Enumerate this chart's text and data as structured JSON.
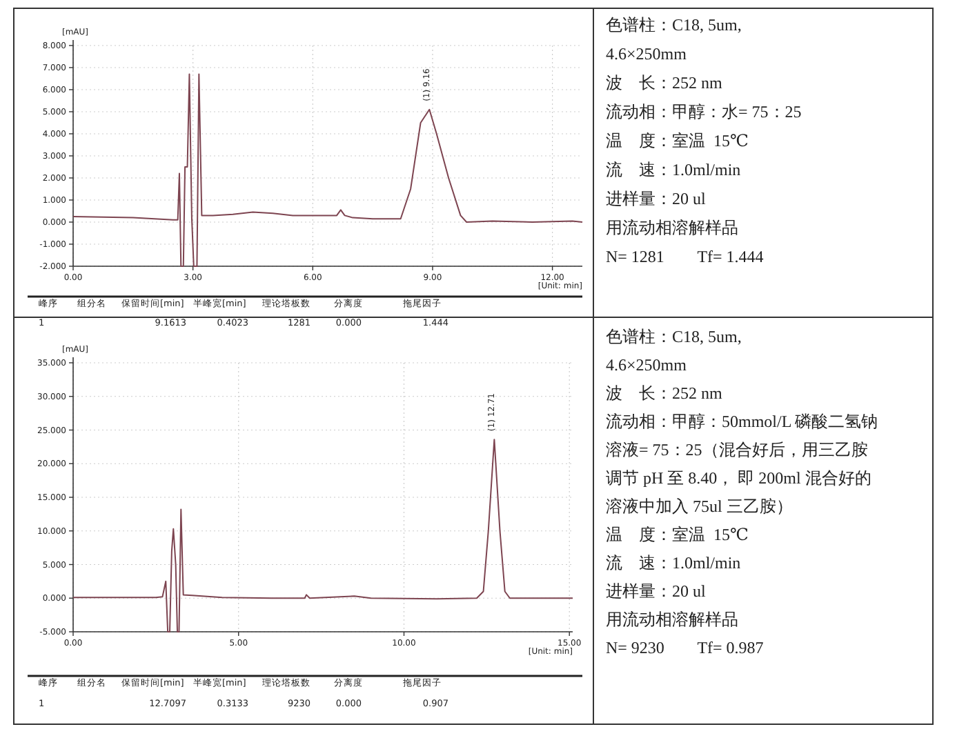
{
  "chart_data": [
    {
      "type": "line",
      "xlabel": "[Unit: min]",
      "ylabel": "[mAU]",
      "xlim": [
        0,
        12.75
      ],
      "ylim": [
        -2,
        8
      ],
      "xticks": [
        {
          "value": 0,
          "label": "0.00"
        },
        {
          "value": 3,
          "label": "3.00"
        },
        {
          "value": 6,
          "label": "6.00"
        },
        {
          "value": 9,
          "label": "9.00"
        },
        {
          "value": 12,
          "label": "12.00"
        }
      ],
      "yticks": [
        {
          "value": -2,
          "label": "-2.000"
        },
        {
          "value": -1,
          "label": "-1.000"
        },
        {
          "value": 0,
          "label": "0.000"
        },
        {
          "value": 1,
          "label": "1.000"
        },
        {
          "value": 2,
          "label": "2.000"
        },
        {
          "value": 3,
          "label": "3.000"
        },
        {
          "value": 4,
          "label": "4.000"
        },
        {
          "value": 5,
          "label": "5.000"
        },
        {
          "value": 6,
          "label": "6.000"
        },
        {
          "value": 7,
          "label": "7.000"
        },
        {
          "value": 8,
          "label": "8.000"
        }
      ],
      "grid": true,
      "x": [
        0,
        1.5,
        2.5,
        2.62,
        2.66,
        2.7,
        2.76,
        2.8,
        2.86,
        2.91,
        2.97,
        3.02,
        3.1,
        3.15,
        3.22,
        3.5,
        4.0,
        4.5,
        5.0,
        5.5,
        6.0,
        6.6,
        6.7,
        6.8,
        7.0,
        7.5,
        8.2,
        8.45,
        8.7,
        8.92,
        9.1,
        9.4,
        9.7,
        9.85,
        10.5,
        11.5,
        12.5,
        12.75
      ],
      "series": [
        {
          "color": "#7d4450",
          "values": [
            0.25,
            0.2,
            0.1,
            0.1,
            2.2,
            -2,
            -2,
            2.5,
            2.5,
            6.7,
            0.2,
            -2,
            -2,
            6.7,
            0.3,
            0.3,
            0.35,
            0.45,
            0.4,
            0.3,
            0.3,
            0.3,
            0.55,
            0.3,
            0.2,
            0.15,
            0.15,
            1.5,
            4.5,
            5.1,
            4.0,
            2.0,
            0.3,
            0.0,
            0.05,
            0.0,
            0.05,
            0.0
          ]
        }
      ],
      "annotations": [
        {
          "text": "(1) 9.16",
          "x": 8.92,
          "y": 5.1
        },
        "峰序",
        "组分名",
        "保留时间[min]",
        "半峰宽[min]",
        "理论塔板数",
        "分离度",
        "拖尾因子",
        "1",
        "9.1613",
        "0.4023",
        "1281",
        "0.000",
        "1.444"
      ]
    },
    {
      "type": "other",
      "annotations": [
        "色谱柱：C18, 5um,",
        "4.6×250mm",
        "波　长：252 nm",
        "流动相：甲醇：水= 75：25",
        "温　度：室温  15℃",
        "流　速：1.0ml/min",
        "进样量：20 ul",
        "用流动相溶解样品",
        "N= 1281        Tf= 1.444"
      ]
    },
    {
      "type": "line",
      "xlabel": "[Unit: min]",
      "ylabel": "[mAU]",
      "xlim": [
        0,
        15.1
      ],
      "ylim": [
        -5,
        35
      ],
      "xticks": [
        {
          "value": 0,
          "label": "0.00"
        },
        {
          "value": 5,
          "label": "5.00"
        },
        {
          "value": 10,
          "label": "10.00"
        },
        {
          "value": 15,
          "label": "15.00"
        }
      ],
      "yticks": [
        {
          "value": -5,
          "label": "-5.000"
        },
        {
          "value": 0,
          "label": "0.000"
        },
        {
          "value": 5,
          "label": "5.000"
        },
        {
          "value": 10,
          "label": "10.000"
        },
        {
          "value": 15,
          "label": "15.000"
        },
        {
          "value": 20,
          "label": "20.000"
        },
        {
          "value": 25,
          "label": "25.000"
        },
        {
          "value": 30,
          "label": "30.000"
        },
        {
          "value": 35,
          "label": "35.000"
        }
      ],
      "grid": true,
      "x": [
        0,
        2.5,
        2.7,
        2.8,
        2.86,
        2.92,
        2.98,
        3.03,
        3.1,
        3.15,
        3.2,
        3.26,
        3.33,
        3.6,
        4.5,
        6,
        7,
        7.05,
        7.15,
        8.5,
        9,
        11,
        12.2,
        12.4,
        12.55,
        12.73,
        12.9,
        13.05,
        13.2,
        14,
        15.1
      ],
      "series": [
        {
          "color": "#7d4450",
          "values": [
            0.1,
            0.1,
            0.2,
            2.5,
            -5,
            -5,
            7,
            10.3,
            5,
            -5,
            -5,
            13.2,
            0.5,
            0.4,
            0.1,
            0,
            0,
            0.5,
            0,
            0.3,
            0,
            -0.1,
            0,
            1,
            10,
            23.6,
            10,
            1,
            0,
            0,
            0
          ]
        }
      ],
      "annotations": [
        {
          "text": "(1) 12.71",
          "x": 12.73,
          "y": 23.6
        },
        "峰序",
        "组分名",
        "保留时间[min]",
        "半峰宽[min]",
        "理论塔板数",
        "分离度",
        "拖尾因子",
        "1",
        "12.7097",
        "0.3133",
        "9230",
        "0.000",
        "0.907"
      ]
    },
    {
      "type": "other",
      "annotations": [
        "色谱柱：C18, 5um,",
        "4.6×250mm",
        "波　长：252 nm",
        "流动相：甲醇：50mmol/L 磷酸二氢钠",
        "溶液= 75：25（混合好后，用三乙胺",
        "调节 pH 至 8.40， 即 200ml 混合好的",
        "溶液中加入 75ul 三乙胺）",
        "温　度：室温  15℃",
        "流　速：1.0ml/min",
        "进样量：20 ul",
        "用流动相溶解样品",
        "N= 9230        Tf= 0.987"
      ]
    }
  ]
}
